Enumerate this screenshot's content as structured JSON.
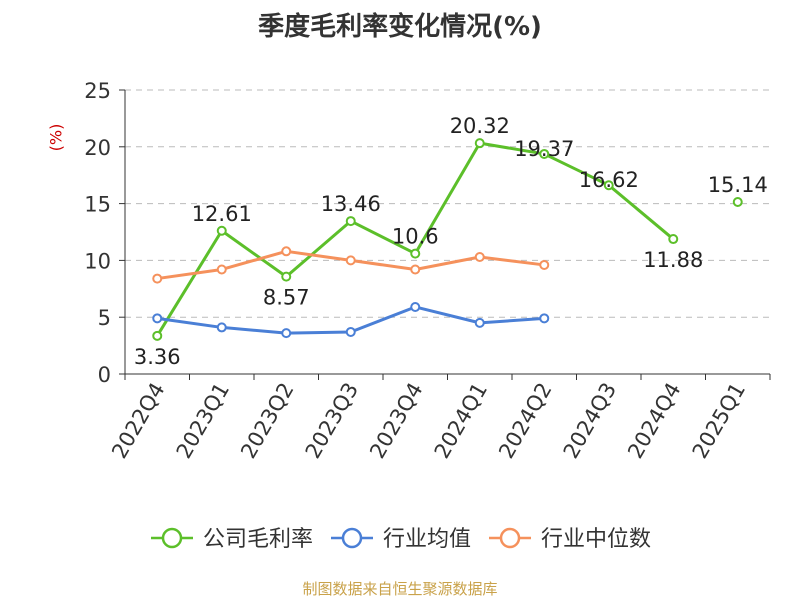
{
  "chart_data": {
    "type": "line",
    "title": "季度毛利率变化情况(%)",
    "ylabel": "(%)",
    "xlabel": "",
    "categories": [
      "2022Q4",
      "2023Q1",
      "2023Q2",
      "2023Q3",
      "2023Q4",
      "2024Q1",
      "2024Q2",
      "2024Q3",
      "2024Q4",
      "2025Q1"
    ],
    "ylim": [
      0,
      25
    ],
    "yticks": [
      0,
      5,
      10,
      15,
      20,
      25
    ],
    "grid": true,
    "legend_position": "bottom",
    "series": [
      {
        "name": "公司毛利率",
        "color": "#5cbf2a",
        "values": [
          3.36,
          12.61,
          8.57,
          13.46,
          10.6,
          20.32,
          19.37,
          16.62,
          11.88,
          15.14
        ],
        "labels": [
          "3.36",
          "12.61",
          "8.57",
          "13.46",
          "10.6",
          "20.32",
          "19.37",
          "16.62",
          "11.88",
          "15.14"
        ],
        "line_gap_after_index": 8
      },
      {
        "name": "行业均值",
        "color": "#4a7fd6",
        "values": [
          4.9,
          4.1,
          3.6,
          3.7,
          5.9,
          4.5,
          4.9,
          null,
          null,
          null
        ]
      },
      {
        "name": "行业中位数",
        "color": "#f5915c",
        "values": [
          8.4,
          9.2,
          10.8,
          10.0,
          9.2,
          10.3,
          9.6,
          null,
          null,
          null
        ]
      }
    ]
  },
  "footer": {
    "source": "制图数据来自恒生聚源数据库"
  }
}
